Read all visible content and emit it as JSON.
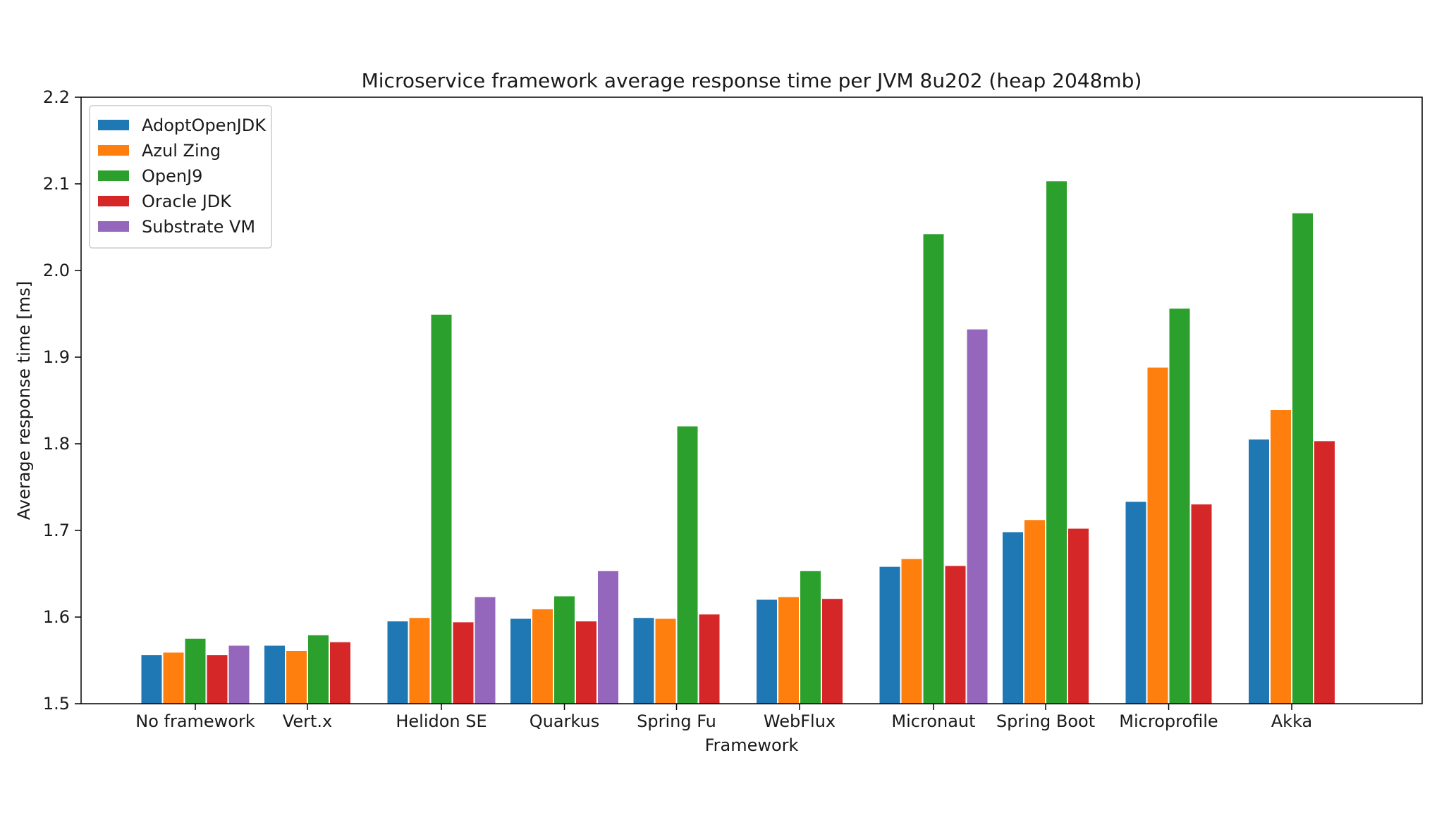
{
  "chart_data": {
    "type": "bar",
    "title": "Microservice framework average response time per JVM 8u202 (heap 2048mb)",
    "xlabel": "Framework",
    "ylabel": "Average response time [ms]",
    "ylim": [
      1.5,
      2.2
    ],
    "yticks": [
      "1.5",
      "1.6",
      "1.7",
      "1.8",
      "1.9",
      "2.0",
      "2.1",
      "2.2"
    ],
    "grid": false,
    "legend_position": "top-left",
    "categories": [
      "No framework",
      "Vert.x",
      "Helidon SE",
      "Quarkus",
      "Spring Fu",
      "WebFlux",
      "Micronaut",
      "Spring Boot",
      "Microprofile",
      "Akka"
    ],
    "series": [
      {
        "name": "AdoptOpenJDK",
        "color": "#1f77b4",
        "values": [
          1.556,
          1.567,
          1.595,
          1.598,
          1.599,
          1.62,
          1.658,
          1.698,
          1.733,
          1.805
        ]
      },
      {
        "name": "Azul Zing",
        "color": "#ff7f0e",
        "values": [
          1.559,
          1.561,
          1.599,
          1.609,
          1.598,
          1.623,
          1.667,
          1.712,
          1.888,
          1.839
        ]
      },
      {
        "name": "OpenJ9",
        "color": "#2ca02c",
        "values": [
          1.575,
          1.579,
          1.949,
          1.624,
          1.82,
          1.653,
          2.042,
          2.103,
          1.956,
          2.066
        ]
      },
      {
        "name": "Oracle JDK",
        "color": "#d62728",
        "values": [
          1.556,
          1.571,
          1.594,
          1.595,
          1.603,
          1.621,
          1.659,
          1.702,
          1.73,
          1.803
        ]
      },
      {
        "name": "Substrate VM",
        "color": "#9467bd",
        "values": [
          1.567,
          null,
          1.623,
          1.653,
          null,
          null,
          1.932,
          null,
          null,
          null
        ]
      }
    ]
  }
}
